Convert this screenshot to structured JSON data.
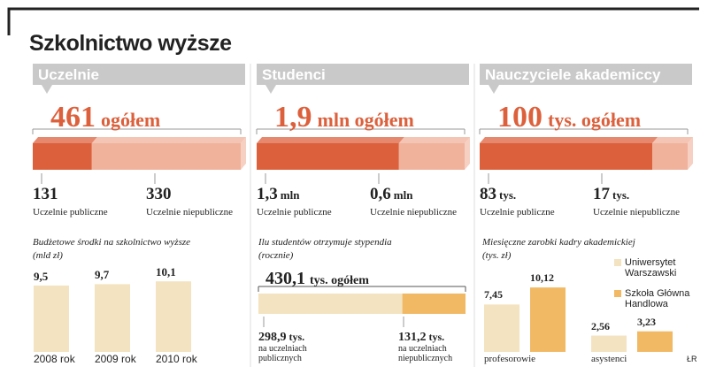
{
  "title": "Szkolnictwo wyższe",
  "credit": "ŁR",
  "panels": [
    {
      "header": "Uczelnie",
      "total": 461,
      "total_suffix": "ogółem",
      "segments": [
        {
          "name": "Uczelnie publiczne",
          "value": 131,
          "color": "#dc603c"
        },
        {
          "name": "Uczelnie niepubliczne",
          "value": 330,
          "color": "#f0b29b"
        }
      ]
    },
    {
      "header": "Studenci",
      "total": {
        "value": 1.9,
        "label": "1,9"
      },
      "total_suffix": "mln ogółem",
      "segments": [
        {
          "name": "Uczelnie publiczne",
          "value": {
            "value": 1.3,
            "label": "1,3"
          },
          "unit": "mln",
          "color": "#dc603c"
        },
        {
          "name": "Uczelnie niepubliczne",
          "value": {
            "value": 0.6,
            "label": "0,6"
          },
          "unit": "mln",
          "color": "#f0b29b"
        }
      ]
    },
    {
      "header": "Nauczyciele akademiccy",
      "total": 100,
      "total_suffix": "tys. ogółem",
      "segments": [
        {
          "name": "Uczelnie publiczne",
          "value": 83,
          "unit": "tys.",
          "color": "#dc603c"
        },
        {
          "name": "Uczelnie niepubliczne",
          "value": 17,
          "unit": "tys.",
          "color": "#f0b29b"
        }
      ]
    }
  ],
  "budget": {
    "type": "bar",
    "title": "Budżetowe środki na szkolnictwo wyższe",
    "subtitle": "(mld zł)",
    "categories": [
      "2008 rok",
      "2009 rok",
      "2010 rok"
    ],
    "values": [
      9.5,
      9.7,
      10.1
    ],
    "value_labels": [
      "9,5",
      "9,7",
      "10,1"
    ],
    "color": "#f3e3c0"
  },
  "scholarships": {
    "type": "stacked-bar",
    "title": "Ilu studentów otrzymuje stypendia",
    "subtitle": "(rocznie)",
    "total": {
      "value": 430.1,
      "label": "430,1"
    },
    "total_suffix": "tys. ogółem",
    "segments": [
      {
        "name": "na uczelniach publicznych",
        "value": {
          "value": 298.9,
          "label": "298,9"
        },
        "unit": "tys.",
        "color": "#f3e3c0"
      },
      {
        "name": "na uczelniach niepublicznych",
        "value": {
          "value": 131.2,
          "label": "131,2"
        },
        "unit": "tys.",
        "color": "#f1b964"
      }
    ]
  },
  "salaries": {
    "type": "bar",
    "title": "Miesięczne zarobki kadry akademickiej",
    "subtitle": "(tys. zł)",
    "categories": [
      "profesorowie",
      "asystenci"
    ],
    "series": [
      {
        "name": "Uniwersytet Warszawski",
        "color": "#f3e3c0",
        "values": [
          7.45,
          2.56
        ],
        "value_labels": [
          "7,45",
          "2,56"
        ]
      },
      {
        "name": "Szkoła Główna Handlowa",
        "color": "#f1b964",
        "values": [
          10.12,
          3.23
        ],
        "value_labels": [
          "10,12",
          "3,23"
        ]
      }
    ]
  }
}
